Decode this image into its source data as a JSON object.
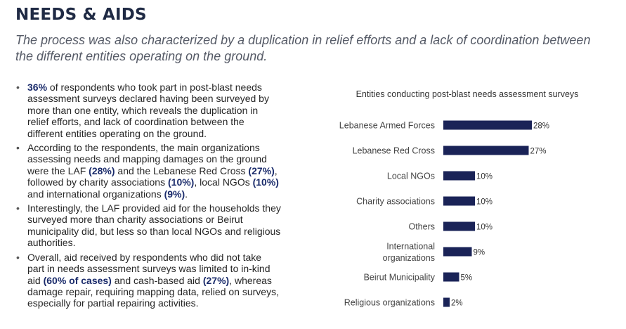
{
  "header": {
    "title": "NEEDS & AIDS",
    "subtitle": "The process was also characterized by a duplication in relief efforts and a lack of coordination between the different entities operating on the ground."
  },
  "bullets": [
    [
      {
        "t": "36%",
        "hl": true
      },
      {
        "t": " of respondents who took part in post-blast needs assessment surveys declared having been surveyed by more than one entity, which reveals the duplication in relief efforts, and lack of coordination between the different entities operating on the ground."
      }
    ],
    [
      {
        "t": "According to the respondents, the main organizations assessing needs and mapping damages on the ground were the LAF ("
      },
      {
        "t": "(28%)",
        "hl": true
      },
      {
        "t": ") and the Lebanese Red Cross ("
      },
      {
        "t": "(27%)",
        "hl": true
      },
      {
        "t": "), followed by charity associations ("
      },
      {
        "t": "(10%)",
        "hl": true
      },
      {
        "t": "), local NGOs ("
      },
      {
        "t": "(10%)",
        "hl": true
      },
      {
        "t": ") and international organizations ("
      },
      {
        "t": "(9%)",
        "hl": true
      },
      {
        "t": ")."
      }
    ],
    [
      {
        "t": "Interestingly, the LAF provided aid for the households they surveyed more than charity associations or Beirut municipality did, but less so than local NGOs and religious authorities."
      }
    ],
    [
      {
        "t": "Overall, aid received by respondents who did not take part in needs assessment surveys was limited to in-kind aid ("
      },
      {
        "t": "(60% of cases)",
        "hl": true
      },
      {
        "t": ") and cash-based aid ("
      },
      {
        "t": "(27%)",
        "hl": true
      },
      {
        "t": "), whereas damage repair, requiring mapping data, relied on surveys, especially for partial repairing activities."
      }
    ]
  ],
  "colors": {
    "bar": "#1a2357",
    "highlight": "#1a2b6b",
    "heading": "#1f2a44"
  },
  "chart_data": {
    "type": "bar",
    "orientation": "horizontal",
    "title": "Entities conducting post-blast needs assessment surveys",
    "categories": [
      "Lebanese Armed Forces",
      "Lebanese Red Cross",
      "Local NGOs",
      "Charity associations",
      "Others",
      "International organizations",
      "Beirut Municipality",
      "Religious organizations"
    ],
    "values": [
      28,
      27,
      10,
      10,
      10,
      9,
      5,
      2
    ],
    "value_labels": [
      "28%",
      "27%",
      "10%",
      "10%",
      "10%",
      "9%",
      "5%",
      "2%"
    ],
    "unit": "%",
    "xlim": [
      0,
      28
    ],
    "grid": false,
    "legend": "none"
  }
}
